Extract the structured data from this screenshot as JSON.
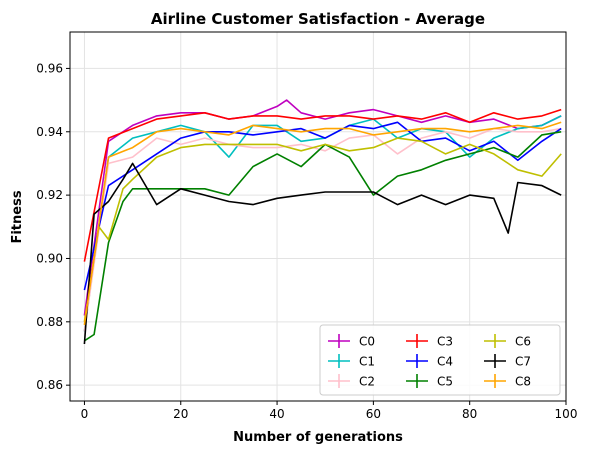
{
  "chart_data": {
    "type": "line",
    "title": "Airline Customer Satisfaction - Average",
    "xlabel": "Number of generations",
    "ylabel": "Fitness",
    "xlim": [
      -3,
      100
    ],
    "ylim": [
      0.855,
      0.9715
    ],
    "xticks": [
      0,
      20,
      40,
      60,
      80,
      100
    ],
    "xtick_labels": [
      "0",
      "20",
      "40",
      "60",
      "80",
      "100"
    ],
    "yticks": [
      0.86,
      0.88,
      0.9,
      0.92,
      0.94,
      0.96
    ],
    "ytick_labels": [
      "0.86",
      "0.88",
      "0.90",
      "0.92",
      "0.94",
      "0.96"
    ],
    "grid": true,
    "legend": {
      "position": "lower-right",
      "columns": 3
    },
    "series": [
      {
        "name": "C0",
        "color": "#bf00bf",
        "x": [
          0,
          5,
          10,
          15,
          20,
          25,
          30,
          35,
          40,
          42,
          45,
          50,
          55,
          60,
          65,
          70,
          75,
          80,
          85,
          90,
          95,
          99
        ],
        "y": [
          0.882,
          0.937,
          0.942,
          0.945,
          0.946,
          0.946,
          0.944,
          0.945,
          0.948,
          0.95,
          0.946,
          0.944,
          0.946,
          0.947,
          0.945,
          0.943,
          0.945,
          0.943,
          0.944,
          0.941,
          0.942,
          0.945
        ]
      },
      {
        "name": "C1",
        "color": "#00bfbf",
        "x": [
          0,
          5,
          10,
          15,
          20,
          25,
          30,
          35,
          40,
          45,
          50,
          55,
          60,
          65,
          70,
          75,
          80,
          85,
          90,
          95,
          99
        ],
        "y": [
          0.877,
          0.932,
          0.938,
          0.94,
          0.942,
          0.94,
          0.932,
          0.942,
          0.942,
          0.937,
          0.938,
          0.942,
          0.944,
          0.938,
          0.941,
          0.94,
          0.932,
          0.938,
          0.941,
          0.942,
          0.945
        ]
      },
      {
        "name": "C2",
        "color": "#ffc0cb",
        "x": [
          0,
          5,
          10,
          15,
          20,
          25,
          30,
          35,
          40,
          45,
          50,
          55,
          60,
          65,
          70,
          75,
          80,
          85,
          90,
          95,
          99
        ],
        "y": [
          0.877,
          0.93,
          0.932,
          0.938,
          0.936,
          0.938,
          0.936,
          0.935,
          0.935,
          0.936,
          0.934,
          0.938,
          0.939,
          0.933,
          0.938,
          0.94,
          0.938,
          0.941,
          0.94,
          0.94,
          0.941
        ]
      },
      {
        "name": "C3",
        "color": "#ff0000",
        "x": [
          0,
          5,
          10,
          15,
          20,
          25,
          30,
          35,
          40,
          45,
          50,
          55,
          60,
          65,
          70,
          75,
          80,
          85,
          90,
          95,
          99
        ],
        "y": [
          0.899,
          0.938,
          0.941,
          0.944,
          0.945,
          0.946,
          0.944,
          0.945,
          0.945,
          0.944,
          0.945,
          0.945,
          0.944,
          0.945,
          0.944,
          0.946,
          0.943,
          0.946,
          0.944,
          0.945,
          0.947
        ]
      },
      {
        "name": "C4",
        "color": "#0000ff",
        "x": [
          0,
          5,
          10,
          15,
          20,
          25,
          30,
          35,
          40,
          45,
          50,
          55,
          60,
          65,
          70,
          75,
          80,
          85,
          90,
          95,
          99
        ],
        "y": [
          0.89,
          0.923,
          0.928,
          0.933,
          0.938,
          0.94,
          0.94,
          0.939,
          0.94,
          0.941,
          0.938,
          0.942,
          0.941,
          0.943,
          0.937,
          0.938,
          0.934,
          0.937,
          0.931,
          0.937,
          0.941
        ]
      },
      {
        "name": "C5",
        "color": "#008000",
        "x": [
          0,
          2,
          5,
          8,
          10,
          15,
          20,
          25,
          30,
          35,
          40,
          45,
          50,
          55,
          60,
          65,
          70,
          75,
          80,
          85,
          90,
          95,
          99
        ],
        "y": [
          0.874,
          0.876,
          0.905,
          0.918,
          0.922,
          0.922,
          0.922,
          0.922,
          0.92,
          0.929,
          0.933,
          0.929,
          0.936,
          0.932,
          0.92,
          0.926,
          0.928,
          0.931,
          0.933,
          0.935,
          0.932,
          0.939,
          0.94
        ]
      },
      {
        "name": "C6",
        "color": "#bfbf00",
        "x": [
          0,
          3,
          5,
          8,
          10,
          15,
          20,
          25,
          30,
          35,
          40,
          45,
          50,
          55,
          60,
          65,
          70,
          75,
          80,
          85,
          90,
          95,
          99
        ],
        "y": [
          0.88,
          0.91,
          0.906,
          0.922,
          0.925,
          0.932,
          0.935,
          0.936,
          0.936,
          0.936,
          0.936,
          0.934,
          0.936,
          0.934,
          0.935,
          0.938,
          0.937,
          0.933,
          0.936,
          0.933,
          0.928,
          0.926,
          0.933
        ]
      },
      {
        "name": "C7",
        "color": "#000000",
        "x": [
          0,
          2,
          5,
          8,
          10,
          15,
          20,
          25,
          30,
          35,
          40,
          45,
          50,
          55,
          60,
          65,
          70,
          75,
          80,
          85,
          88,
          90,
          95,
          99
        ],
        "y": [
          0.873,
          0.914,
          0.918,
          0.925,
          0.93,
          0.917,
          0.922,
          0.92,
          0.918,
          0.917,
          0.919,
          0.92,
          0.921,
          0.921,
          0.921,
          0.917,
          0.92,
          0.917,
          0.92,
          0.919,
          0.908,
          0.924,
          0.923,
          0.92
        ]
      },
      {
        "name": "C8",
        "color": "#ffa500",
        "x": [
          0,
          5,
          10,
          15,
          20,
          25,
          30,
          35,
          40,
          45,
          50,
          55,
          60,
          65,
          70,
          75,
          80,
          85,
          90,
          95,
          99
        ],
        "y": [
          0.879,
          0.932,
          0.935,
          0.94,
          0.941,
          0.94,
          0.939,
          0.942,
          0.941,
          0.94,
          0.941,
          0.941,
          0.939,
          0.94,
          0.941,
          0.941,
          0.94,
          0.941,
          0.942,
          0.941,
          0.943
        ]
      }
    ]
  }
}
